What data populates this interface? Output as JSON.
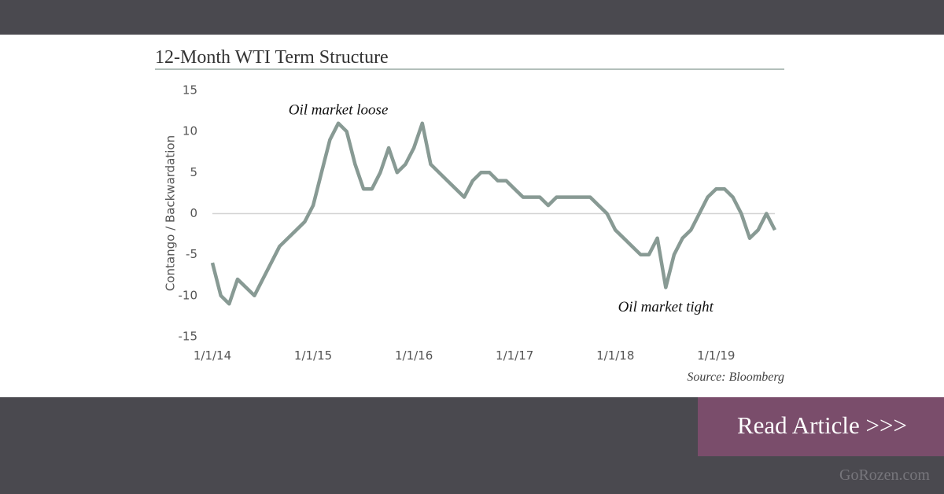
{
  "chart_data": {
    "type": "line",
    "title": "12-Month WTI Term Structure",
    "y_label": "Contango / Backwardation",
    "source": "Source: Bloomberg",
    "annotations": [
      {
        "text": "Oil market loose",
        "x": "4/1/15",
        "y": 12.5
      },
      {
        "text": "Oil market tight",
        "x": "7/1/18",
        "y": -11.5
      }
    ],
    "x": [
      "1/1/14",
      "2/1/14",
      "3/1/14",
      "4/1/14",
      "5/1/14",
      "6/1/14",
      "7/1/14",
      "8/1/14",
      "9/1/14",
      "10/1/14",
      "11/1/14",
      "12/1/14",
      "1/1/15",
      "2/1/15",
      "3/1/15",
      "4/1/15",
      "5/1/15",
      "6/1/15",
      "7/1/15",
      "8/1/15",
      "9/1/15",
      "10/1/15",
      "11/1/15",
      "12/1/15",
      "1/1/16",
      "2/1/16",
      "3/1/16",
      "4/1/16",
      "5/1/16",
      "6/1/16",
      "7/1/16",
      "8/1/16",
      "9/1/16",
      "10/1/16",
      "11/1/16",
      "12/1/16",
      "1/1/17",
      "2/1/17",
      "3/1/17",
      "4/1/17",
      "5/1/17",
      "6/1/17",
      "7/1/17",
      "8/1/17",
      "9/1/17",
      "10/1/17",
      "11/1/17",
      "12/1/17",
      "1/1/18",
      "2/1/18",
      "3/1/18",
      "4/1/18",
      "5/1/18",
      "6/1/18",
      "7/1/18",
      "8/1/18",
      "9/1/18",
      "10/1/18",
      "11/1/18",
      "12/1/18",
      "1/1/19",
      "2/1/19",
      "3/1/19",
      "4/1/19",
      "5/1/19",
      "6/1/19",
      "7/1/19",
      "8/1/19"
    ],
    "values": [
      -6,
      -10,
      -11,
      -8,
      -9,
      -10,
      -8,
      -6,
      -4,
      -3,
      -2,
      -1,
      1,
      5,
      9,
      11,
      10,
      6,
      3,
      3,
      5,
      8,
      5,
      6,
      8,
      11,
      6,
      5,
      4,
      3,
      2,
      4,
      5,
      5,
      4,
      4,
      3,
      2,
      2,
      2,
      1,
      2,
      2,
      2,
      2,
      2,
      1,
      0,
      -2,
      -3,
      -4,
      -5,
      -5,
      -3,
      -9,
      -5,
      -3,
      -2,
      0,
      2,
      3,
      3,
      2,
      0,
      -3,
      -2,
      0,
      -2
    ],
    "color": "#889a94",
    "xlim": [
      "1/1/14",
      "8/1/19"
    ],
    "xticks": [
      "1/1/14",
      "1/1/15",
      "1/1/16",
      "1/1/17",
      "1/1/18",
      "1/1/19"
    ],
    "ylim": [
      -15,
      15
    ],
    "yticks": [
      -15,
      -10,
      -5,
      0,
      5,
      10,
      15
    ],
    "zero_line": true
  },
  "button": {
    "label": "Read Article >>>"
  },
  "site": "GoRozen.com"
}
